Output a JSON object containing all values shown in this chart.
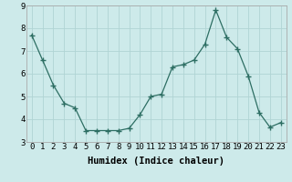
{
  "x": [
    0,
    1,
    2,
    3,
    4,
    5,
    6,
    7,
    8,
    9,
    10,
    11,
    12,
    13,
    14,
    15,
    16,
    17,
    18,
    19,
    20,
    21,
    22,
    23
  ],
  "y": [
    7.7,
    6.6,
    5.5,
    4.7,
    4.5,
    3.5,
    3.5,
    3.5,
    3.5,
    3.6,
    4.2,
    5.0,
    5.1,
    6.3,
    6.4,
    6.6,
    7.3,
    8.8,
    7.6,
    7.1,
    5.9,
    4.3,
    3.65,
    3.85
  ],
  "line_color": "#2d6e63",
  "marker": "+",
  "marker_size": 4,
  "bg_color": "#cdeaea",
  "grid_color": "#b0d4d4",
  "xlabel": "Humidex (Indice chaleur)",
  "xlabel_fontsize": 7.5,
  "tick_fontsize": 6.5,
  "ylim": [
    3,
    9
  ],
  "xlim": [
    -0.5,
    23.5
  ],
  "yticks": [
    3,
    4,
    5,
    6,
    7,
    8,
    9
  ],
  "xticks": [
    0,
    1,
    2,
    3,
    4,
    5,
    6,
    7,
    8,
    9,
    10,
    11,
    12,
    13,
    14,
    15,
    16,
    17,
    18,
    19,
    20,
    21,
    22,
    23
  ],
  "xtick_labels": [
    "0",
    "1",
    "2",
    "3",
    "4",
    "5",
    "6",
    "7",
    "8",
    "9",
    "10",
    "11",
    "12",
    "13",
    "14",
    "15",
    "16",
    "17",
    "18",
    "19",
    "20",
    "21",
    "22",
    "23"
  ]
}
